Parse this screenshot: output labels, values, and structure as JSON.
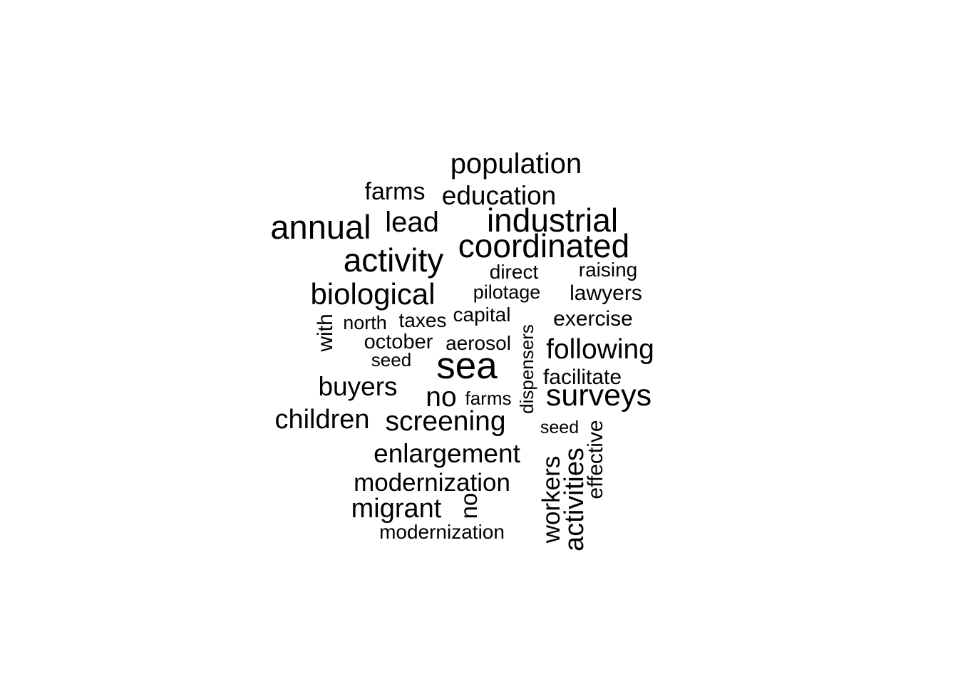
{
  "word_cloud": {
    "text_color": "#000000",
    "background_color": "#ffffff",
    "words": [
      {
        "text": "population",
        "weight": 40,
        "vertical": false
      },
      {
        "text": "farms",
        "weight": 34,
        "vertical": false
      },
      {
        "text": "education",
        "weight": 37,
        "vertical": false
      },
      {
        "text": "annual",
        "weight": 47,
        "vertical": false
      },
      {
        "text": "lead",
        "weight": 40,
        "vertical": false
      },
      {
        "text": "industrial",
        "weight": 46,
        "vertical": false
      },
      {
        "text": "activity",
        "weight": 46,
        "vertical": false
      },
      {
        "text": "coordinated",
        "weight": 46,
        "vertical": false
      },
      {
        "text": "direct",
        "weight": 28,
        "vertical": false
      },
      {
        "text": "raising",
        "weight": 28,
        "vertical": false
      },
      {
        "text": "biological",
        "weight": 42,
        "vertical": false
      },
      {
        "text": "pilotage",
        "weight": 27,
        "vertical": false
      },
      {
        "text": "lawyers",
        "weight": 30,
        "vertical": false
      },
      {
        "text": "with",
        "weight": 30,
        "vertical": true
      },
      {
        "text": "north",
        "weight": 27,
        "vertical": false
      },
      {
        "text": "taxes",
        "weight": 28,
        "vertical": false
      },
      {
        "text": "capital",
        "weight": 28,
        "vertical": false
      },
      {
        "text": "dispensers",
        "weight": 26,
        "vertical": true
      },
      {
        "text": "exercise",
        "weight": 30,
        "vertical": false
      },
      {
        "text": "october",
        "weight": 29,
        "vertical": false
      },
      {
        "text": "aerosol",
        "weight": 28,
        "vertical": false
      },
      {
        "text": "following",
        "weight": 39,
        "vertical": false
      },
      {
        "text": "seed",
        "weight": 26,
        "vertical": false
      },
      {
        "text": "sea",
        "weight": 53,
        "vertical": false
      },
      {
        "text": "facilitate",
        "weight": 30,
        "vertical": false
      },
      {
        "text": "buyers",
        "weight": 37,
        "vertical": false
      },
      {
        "text": "no",
        "weight": 39,
        "vertical": false
      },
      {
        "text": "farms",
        "weight": 26,
        "vertical": false
      },
      {
        "text": "surveys",
        "weight": 43,
        "vertical": false
      },
      {
        "text": "children",
        "weight": 38,
        "vertical": false
      },
      {
        "text": "screening",
        "weight": 39,
        "vertical": false
      },
      {
        "text": "seed",
        "weight": 25,
        "vertical": false
      },
      {
        "text": "effective",
        "weight": 30,
        "vertical": true
      },
      {
        "text": "enlargement",
        "weight": 37,
        "vertical": false
      },
      {
        "text": "workers",
        "weight": 35,
        "vertical": true
      },
      {
        "text": "activities",
        "weight": 38,
        "vertical": true
      },
      {
        "text": "modernization",
        "weight": 35,
        "vertical": false
      },
      {
        "text": "no",
        "weight": 33,
        "vertical": true
      },
      {
        "text": "migrant",
        "weight": 38,
        "vertical": false
      },
      {
        "text": "modernization",
        "weight": 28,
        "vertical": false
      }
    ]
  }
}
